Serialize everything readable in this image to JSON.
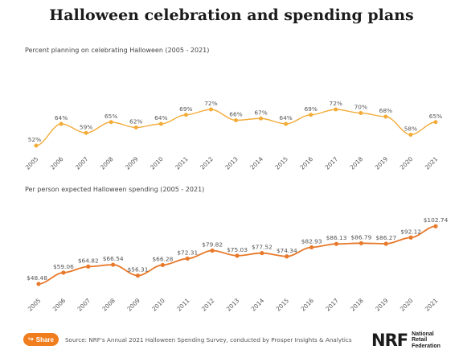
{
  "title": "Halloween celebration and spending plans",
  "chart_data": [
    {
      "type": "line",
      "title": "Percent planning on celebrating Halloween (2005 - 2021)",
      "xlabel": "",
      "ylabel": "",
      "categories": [
        "2005",
        "2006",
        "2007",
        "2008",
        "2009",
        "2010",
        "2011",
        "2012",
        "2013",
        "2014",
        "2015",
        "2016",
        "2017",
        "2018",
        "2019",
        "2020",
        "2021"
      ],
      "values": [
        52,
        64,
        59,
        65,
        62,
        64,
        69,
        72,
        66,
        67,
        64,
        69,
        72,
        70,
        68,
        58,
        65
      ],
      "labels": [
        "52%",
        "64%",
        "59%",
        "65%",
        "62%",
        "64%",
        "69%",
        "72%",
        "66%",
        "67%",
        "64%",
        "69%",
        "72%",
        "70%",
        "68%",
        "58%",
        "65%"
      ],
      "ylim": [
        0,
        100
      ],
      "color": "#f3ab38",
      "grid": false
    },
    {
      "type": "line",
      "title": "Per person expected Halloween spending (2005 - 2021)",
      "xlabel": "",
      "ylabel": "",
      "categories": [
        "2005",
        "2006",
        "2007",
        "2008",
        "2009",
        "2010",
        "2011",
        "2012",
        "2013",
        "2014",
        "2015",
        "2016",
        "2017",
        "2018",
        "2019",
        "2020",
        "2021"
      ],
      "values": [
        48.48,
        59.06,
        64.82,
        66.54,
        56.31,
        66.28,
        72.31,
        79.82,
        75.03,
        77.52,
        74.34,
        82.93,
        86.13,
        86.79,
        86.27,
        92.12,
        102.74
      ],
      "labels": [
        "$48.48",
        "$59.06",
        "$64.82",
        "$66.54",
        "$56.31",
        "$66.28",
        "$72.31",
        "$79.82",
        "$75.03",
        "$77.52",
        "$74.34",
        "$82.93",
        "$86.13",
        "$86.79",
        "$86.27",
        "$92.12",
        "$102.74"
      ],
      "ylim": [
        0,
        140
      ],
      "color": "#e8792a",
      "grid": false
    }
  ],
  "footer": {
    "share_label": "Share",
    "share_icon": "share-icon",
    "source": "Source: NRF's Annual 2021 Halloween Spending Survey, conducted by Prosper Insights & Analytics",
    "logo_mark": "NRF",
    "logo_name": [
      "National",
      "Retail",
      "Federation"
    ]
  }
}
